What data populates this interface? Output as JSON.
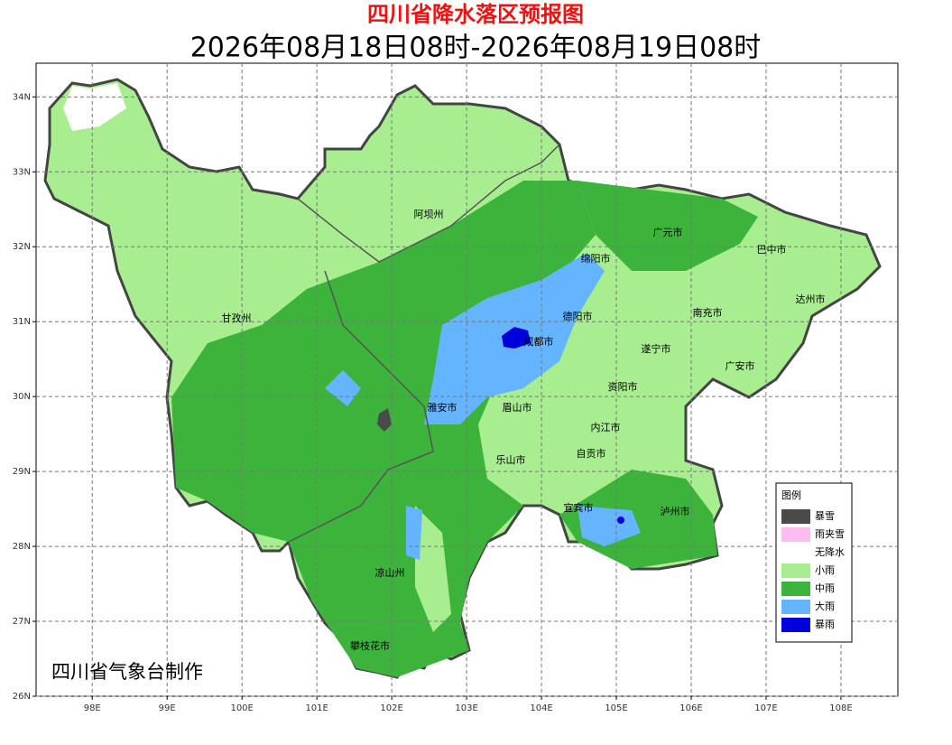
{
  "title": "四川省降水落区预报图",
  "subtitle": "2026年08月18日08时-2026年08月19日08时",
  "map": {
    "xlim": [
      97.25,
      108.76
    ],
    "ylim": [
      26,
      34.45
    ],
    "xticks": [
      {
        "value": 98,
        "label": "98E"
      },
      {
        "value": 99,
        "label": "99E"
      },
      {
        "value": 100,
        "label": "100E"
      },
      {
        "value": 101,
        "label": "101E"
      },
      {
        "value": 102,
        "label": "102E"
      },
      {
        "value": 103,
        "label": "103E"
      },
      {
        "value": 104,
        "label": "104E"
      },
      {
        "value": 105,
        "label": "105E"
      },
      {
        "value": 106,
        "label": "106E"
      },
      {
        "value": 107,
        "label": "107E"
      },
      {
        "value": 108,
        "label": "108E"
      }
    ],
    "yticks": [
      {
        "value": 26,
        "label": "26N"
      },
      {
        "value": 27,
        "label": "27N"
      },
      {
        "value": 28,
        "label": "28N"
      },
      {
        "value": 29,
        "label": "29N"
      },
      {
        "value": 30,
        "label": "30N"
      },
      {
        "value": 31,
        "label": "31N"
      },
      {
        "value": 32,
        "label": "32N"
      },
      {
        "value": 33,
        "label": "33N"
      },
      {
        "value": 34,
        "label": "34N"
      }
    ],
    "grid": true,
    "cities": [
      "阿坝州",
      "广元市",
      "巴中市",
      "绵阳市",
      "达州市",
      "甘孜州",
      "德阳市",
      "南充市",
      "成都市",
      "遂宁市",
      "广安市",
      "资阳市",
      "雅安市",
      "眉山市",
      "内江市",
      "自贡市",
      "乐山市",
      "宜宾市",
      "泸州市",
      "凉山州",
      "攀枝花市"
    ]
  },
  "legend": {
    "title": "图例",
    "items": [
      {
        "label": "暴雪",
        "color": "#4a4a4a"
      },
      {
        "label": "雨夹雪",
        "color": "#ffbcf0"
      },
      {
        "label": "无降水",
        "color": "#ffffff"
      },
      {
        "label": "小雨",
        "color": "#a8ee90"
      },
      {
        "label": "中雨",
        "color": "#3cb43c"
      },
      {
        "label": "大雨",
        "color": "#64b4ff"
      },
      {
        "label": "暴雨",
        "color": "#0000dc"
      }
    ]
  },
  "credit": "四川省气象台制作"
}
